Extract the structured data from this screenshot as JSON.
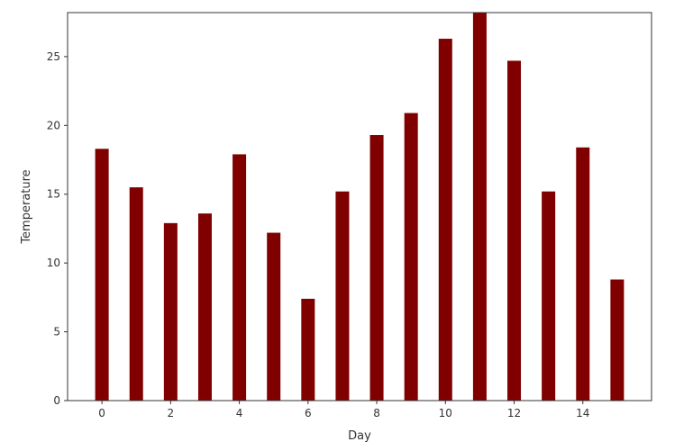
{
  "chart_data": {
    "type": "bar",
    "x": [
      0,
      1,
      2,
      3,
      4,
      5,
      6,
      7,
      8,
      9,
      10,
      11,
      12,
      13,
      14,
      15
    ],
    "values": [
      18.3,
      15.5,
      12.9,
      13.6,
      17.9,
      12.2,
      7.4,
      15.2,
      19.3,
      20.9,
      26.3,
      28.2,
      24.7,
      15.2,
      18.4,
      8.8
    ],
    "title": "",
    "xlabel": "Day",
    "ylabel": "Temperature",
    "xlim": [
      -1,
      16
    ],
    "ylim": [
      0,
      28.2
    ],
    "xticks": [
      0,
      2,
      4,
      6,
      8,
      10,
      12,
      14
    ],
    "yticks": [
      0,
      5,
      10,
      15,
      20,
      25
    ],
    "bar_color": "#800000",
    "grid": false,
    "legend": "none"
  }
}
